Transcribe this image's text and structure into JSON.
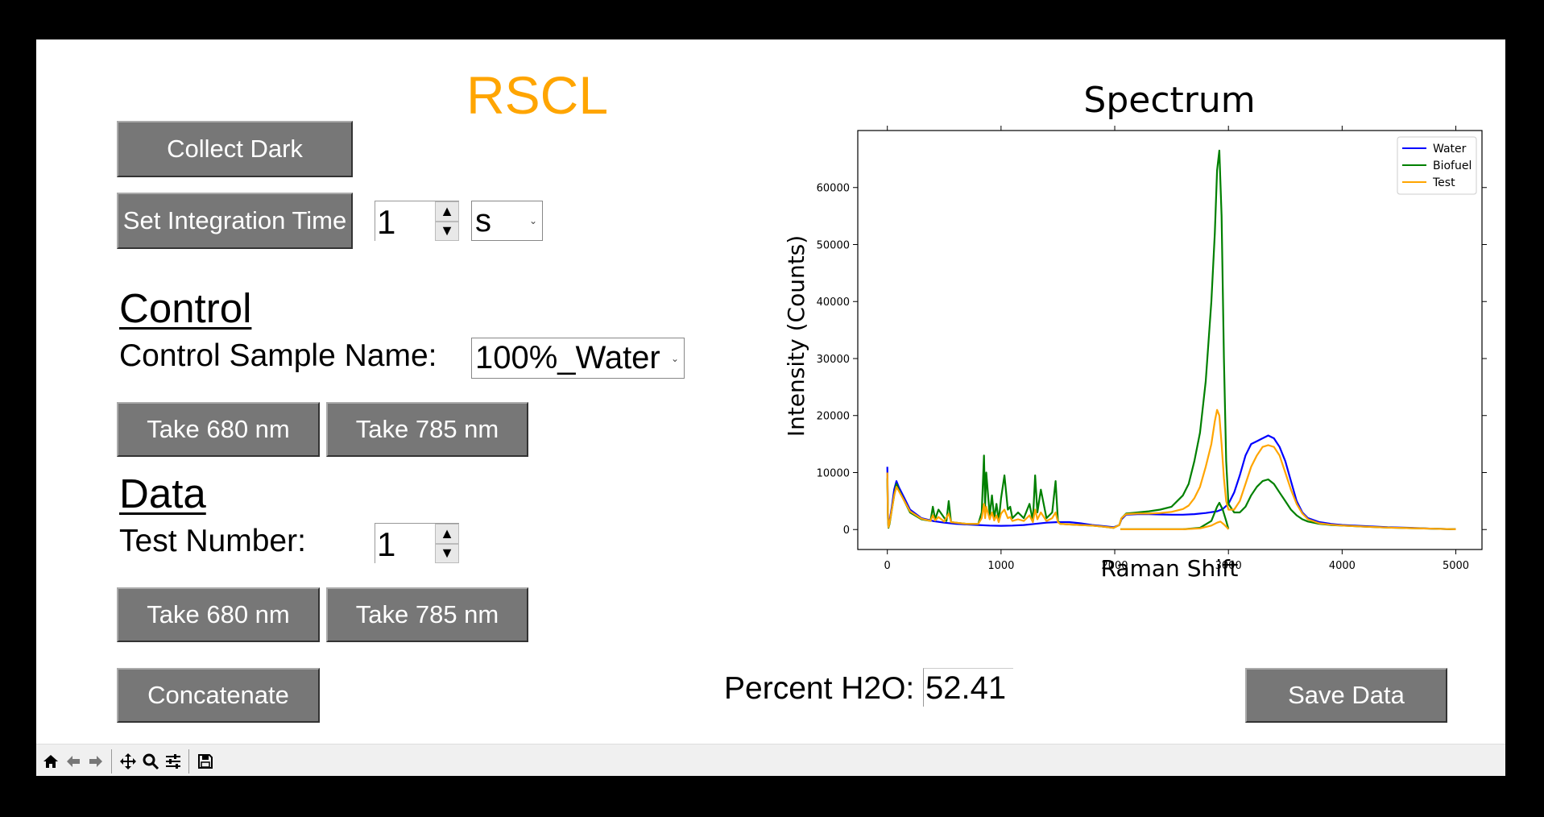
{
  "app": {
    "title": "RSCL",
    "title_color": "#FFA500"
  },
  "buttons": {
    "collect_dark": "Collect Dark",
    "set_integration_time": "Set Integration Time",
    "control_take_680": "Take 680 nm",
    "control_take_785": "Take 785 nm",
    "data_take_680": "Take 680 nm",
    "data_take_785": "Take 785 nm",
    "concatenate": "Concatenate",
    "save_data": "Save Data"
  },
  "integration": {
    "value": "1",
    "unit": "s"
  },
  "control": {
    "heading": "Control",
    "sample_name_label": "Control Sample Name:",
    "sample_name_value": "100%_Water"
  },
  "data_section": {
    "heading": "Data",
    "test_number_label": "Test Number:",
    "test_number_value": "1"
  },
  "result": {
    "percent_label": "Percent H2O:",
    "percent_value": "52.41"
  },
  "toolbar": {
    "icons": [
      "home-icon",
      "back-icon",
      "forward-icon",
      "pan-icon",
      "zoom-icon",
      "configure-icon",
      "save-icon"
    ]
  },
  "chart_data": {
    "type": "line",
    "title": "Spectrum",
    "xlabel": "Raman Shift",
    "ylabel": "Intensity (Counts)",
    "xlim": [
      -260,
      5230
    ],
    "ylim": [
      -3500,
      70000
    ],
    "xticks": [
      0,
      1000,
      2000,
      3000,
      4000,
      5000
    ],
    "yticks": [
      0,
      10000,
      20000,
      30000,
      40000,
      50000,
      60000
    ],
    "legend_position": "top-right",
    "grid": false,
    "series": [
      {
        "name": "Water",
        "color": "#0000FF",
        "x": [
          0,
          5,
          10,
          20,
          40,
          60,
          80,
          100,
          150,
          200,
          300,
          400,
          500,
          600,
          700,
          800,
          900,
          1000,
          1100,
          1200,
          1300,
          1400,
          1500,
          1600,
          1700,
          1800,
          1900,
          1990,
          2040,
          2060,
          2100,
          2200,
          2300,
          2400,
          2500,
          2600,
          2700,
          2800,
          2900,
          2950,
          3000,
          3050,
          3100,
          3150,
          3200,
          3250,
          3300,
          3350,
          3400,
          3450,
          3500,
          3550,
          3600,
          3650,
          3700,
          3800,
          3900,
          4000,
          4200,
          4400,
          4600,
          4800,
          5000
        ],
        "y": [
          11000,
          3000,
          500,
          1500,
          4000,
          7000,
          8500,
          7500,
          5500,
          3500,
          2000,
          1500,
          1200,
          1000,
          900,
          800,
          700,
          650,
          700,
          800,
          1000,
          1200,
          1300,
          1300,
          1100,
          800,
          600,
          400,
          800,
          1800,
          2600,
          2700,
          2700,
          2650,
          2600,
          2600,
          2700,
          2900,
          3200,
          3600,
          4500,
          6500,
          9500,
          13000,
          15000,
          15500,
          16000,
          16500,
          16000,
          14500,
          12000,
          8500,
          5000,
          3000,
          2000,
          1300,
          1000,
          800,
          600,
          400,
          300,
          150,
          50
        ]
      },
      {
        "name": "Biofuel",
        "color": "#008000",
        "x": [
          0,
          5,
          10,
          20,
          40,
          60,
          80,
          100,
          150,
          200,
          300,
          380,
          400,
          420,
          450,
          520,
          540,
          560,
          600,
          700,
          800,
          830,
          850,
          860,
          870,
          900,
          920,
          940,
          960,
          980,
          1000,
          1030,
          1060,
          1080,
          1100,
          1150,
          1200,
          1250,
          1280,
          1300,
          1320,
          1350,
          1400,
          1450,
          1480,
          1500,
          1520,
          1600,
          1700,
          1800,
          1900,
          1990,
          2040,
          2060,
          2100,
          2200,
          2300,
          2400,
          2500,
          2600,
          2650,
          2700,
          2750,
          2800,
          2850,
          2880,
          2900,
          2920,
          2940,
          2960,
          2980,
          3000,
          3050,
          3100,
          3150,
          3200,
          3250,
          3300,
          3350,
          3400,
          3450,
          3500,
          3550,
          3600,
          3650,
          3700,
          3800,
          3900,
          4000,
          4200,
          4400,
          4600,
          4800,
          5000
        ],
        "y": [
          9000,
          2000,
          300,
          1000,
          3500,
          6000,
          8000,
          7000,
          5000,
          3000,
          1800,
          1500,
          4000,
          1800,
          3500,
          1500,
          5000,
          1300,
          1200,
          1000,
          1000,
          3000,
          13000,
          4000,
          10000,
          2500,
          6000,
          2000,
          4500,
          1500,
          5500,
          9500,
          3500,
          4000,
          2000,
          3000,
          2000,
          4500,
          1500,
          9500,
          3000,
          7000,
          2000,
          3000,
          8500,
          1500,
          1000,
          900,
          800,
          700,
          500,
          300,
          800,
          2000,
          2800,
          3000,
          3200,
          3500,
          4000,
          6000,
          8000,
          12000,
          17000,
          26000,
          40000,
          52000,
          63000,
          66500,
          55000,
          30000,
          12000,
          4500,
          3000,
          3000,
          4000,
          6000,
          7500,
          8500,
          8800,
          8000,
          6500,
          5000,
          3500,
          2500,
          1800,
          1400,
          1000,
          800,
          700,
          500,
          350,
          250,
          150,
          50
        ]
      },
      {
        "name": "Test",
        "color": "#FFA500",
        "x": [
          0,
          5,
          10,
          20,
          40,
          60,
          80,
          100,
          150,
          200,
          300,
          380,
          400,
          420,
          450,
          500,
          540,
          560,
          600,
          700,
          800,
          830,
          850,
          860,
          870,
          900,
          920,
          940,
          960,
          980,
          1000,
          1030,
          1060,
          1080,
          1100,
          1150,
          1200,
          1250,
          1280,
          1300,
          1320,
          1350,
          1400,
          1450,
          1480,
          1500,
          1520,
          1600,
          1700,
          1800,
          1900,
          1990,
          2040,
          2060,
          2100,
          2200,
          2300,
          2400,
          2500,
          2600,
          2650,
          2700,
          2750,
          2800,
          2850,
          2880,
          2900,
          2920,
          2940,
          2960,
          2980,
          3000,
          3050,
          3100,
          3150,
          3200,
          3250,
          3300,
          3350,
          3400,
          3450,
          3500,
          3550,
          3600,
          3650,
          3700,
          3800,
          3900,
          4000,
          4200,
          4400,
          4600,
          4800,
          5000
        ],
        "y": [
          10000,
          2500,
          400,
          1200,
          3500,
          6000,
          7500,
          6800,
          5000,
          3200,
          1900,
          1500,
          2500,
          1600,
          2200,
          1400,
          2800,
          1300,
          1200,
          1000,
          1000,
          2000,
          4500,
          2000,
          4000,
          1800,
          3000,
          1600,
          2500,
          1300,
          2800,
          3500,
          2000,
          2200,
          1500,
          1800,
          1500,
          2500,
          1300,
          3500,
          1800,
          3000,
          1500,
          2000,
          3000,
          1300,
          1000,
          900,
          800,
          700,
          500,
          300,
          800,
          2000,
          2700,
          2800,
          2800,
          2900,
          3100,
          3600,
          4200,
          5500,
          7500,
          11000,
          15000,
          19000,
          21000,
          20000,
          15000,
          9000,
          5000,
          3500,
          3500,
          5000,
          8000,
          11000,
          13000,
          14500,
          14800,
          14500,
          13000,
          10000,
          7000,
          4500,
          2800,
          1800,
          1100,
          850,
          700,
          500,
          350,
          250,
          150,
          50
        ]
      },
      {
        "name": "",
        "color": "#008000",
        "x": [
          2050,
          2600,
          2750,
          2850,
          2900,
          2920,
          2950,
          2980,
          3000
        ],
        "y": [
          50,
          50,
          300,
          1500,
          4000,
          4700,
          3500,
          1500,
          100
        ]
      },
      {
        "name": "",
        "color": "#FFA500",
        "x": [
          2050,
          2600,
          2750,
          2850,
          2900,
          2930,
          2960,
          2990,
          3000
        ],
        "y": [
          50,
          50,
          200,
          700,
          1200,
          1400,
          900,
          300,
          50
        ]
      }
    ]
  }
}
